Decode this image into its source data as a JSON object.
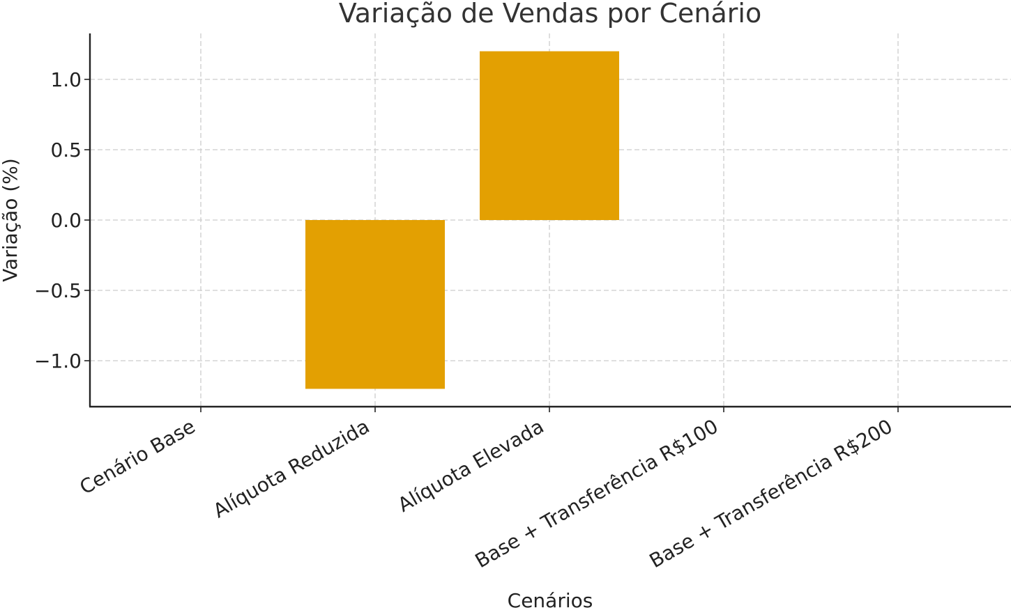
{
  "chart_data": {
    "type": "bar",
    "title": "Variação de Vendas por Cenário",
    "xlabel": "Cenários",
    "ylabel": "Variação (%)",
    "categories": [
      "Cenário Base",
      "Alíquota Reduzida",
      "Alíquota Elevada",
      "Base + Transferência R$100",
      "Base + Transferência R$200"
    ],
    "values": [
      0,
      -1.2,
      1.2,
      0,
      0
    ],
    "ylim": [
      -1.32,
      1.32
    ],
    "yticks": [
      1.0,
      0.5,
      0.0,
      -0.5,
      -1.0
    ],
    "ytick_labels": [
      "1.0",
      "0.5",
      "0.0",
      "−0.5",
      "−1.0"
    ],
    "grid": true,
    "bar_color": "#E3A002"
  }
}
